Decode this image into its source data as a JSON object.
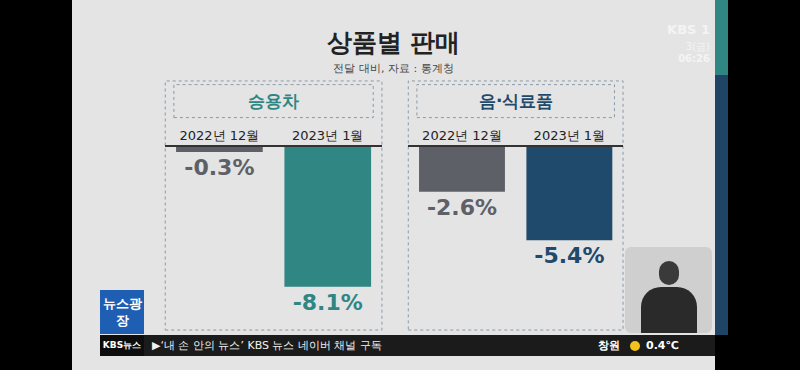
{
  "title": "상품별 판매",
  "subtitle": "전달 대비, 자료 : 통계청",
  "chart_data": [
    {
      "type": "bar",
      "title": "승용차",
      "categories": [
        "2022년 12월",
        "2023년 1월"
      ],
      "values": [
        -0.3,
        -8.1
      ],
      "value_labels": [
        "-0.3%",
        "-8.1%"
      ],
      "colors": [
        "#5d6066",
        "#2f8683"
      ],
      "ylim": [
        -10.6,
        0
      ],
      "tick_labels": "x",
      "data_labels": true
    },
    {
      "type": "bar",
      "title": "음·식료품",
      "categories": [
        "2022년 12월",
        "2023년 1월"
      ],
      "values": [
        -2.6,
        -5.4
      ],
      "value_labels": [
        "-2.6%",
        "-5.4%"
      ],
      "colors": [
        "#5d6066",
        "#1f4a6b"
      ],
      "ylim": [
        -10.6,
        0
      ],
      "tick_labels": "x",
      "data_labels": true
    }
  ],
  "overlay": {
    "channel": "KBS 1",
    "date": "3(금)",
    "time": "06:26",
    "program": "뉴스광장",
    "news_label": "KBS뉴스",
    "ticker": "▶‘내 손 안의 뉴스’ KBS 뉴스 네이버 채널 구독",
    "weather_city": "창원",
    "weather_temp": "0.4℃"
  }
}
